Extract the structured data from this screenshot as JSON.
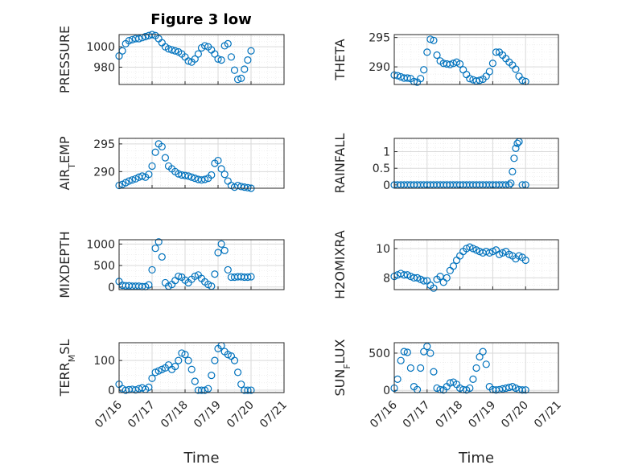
{
  "title": "Figure 3 low",
  "colors": {
    "series": "#0072bd",
    "axis": "#262626",
    "grid": "#d9d9d9"
  },
  "chart_data": [
    {
      "id": "pressure",
      "type": "scatter",
      "ylabel": "PRESSURE",
      "xlim": [
        0,
        5
      ],
      "ylim": [
        963,
        1012
      ],
      "yticks": [
        980,
        1000
      ],
      "xtick_labels": [],
      "x": [
        0.0,
        0.1,
        0.2,
        0.3,
        0.4,
        0.5,
        0.6,
        0.7,
        0.8,
        0.9,
        1.0,
        1.1,
        1.2,
        1.3,
        1.4,
        1.5,
        1.6,
        1.7,
        1.8,
        1.9,
        2.0,
        2.1,
        2.2,
        2.3,
        2.4,
        2.5,
        2.6,
        2.7,
        2.8,
        2.9,
        3.0,
        3.1,
        3.2,
        3.3,
        3.4,
        3.5,
        3.6,
        3.7,
        3.8,
        3.9,
        4.0
      ],
      "y": [
        991,
        996,
        1003,
        1006,
        1007,
        1008,
        1008,
        1009,
        1010,
        1011,
        1012,
        1011,
        1008,
        1004,
        1000,
        998,
        997,
        996,
        995,
        993,
        990,
        986,
        985,
        988,
        993,
        999,
        1001,
        1000,
        997,
        993,
        988,
        987,
        1001,
        1003,
        990,
        977,
        968,
        969,
        978,
        987,
        996
      ]
    },
    {
      "id": "theta",
      "type": "scatter",
      "ylabel": "THETA",
      "xlim": [
        0,
        5
      ],
      "ylim": [
        287,
        295.5
      ],
      "yticks": [
        290,
        295
      ],
      "xtick_labels": [],
      "x": [
        0.0,
        0.1,
        0.2,
        0.3,
        0.4,
        0.5,
        0.6,
        0.7,
        0.8,
        0.9,
        1.0,
        1.1,
        1.2,
        1.3,
        1.4,
        1.5,
        1.6,
        1.7,
        1.8,
        1.9,
        2.0,
        2.1,
        2.2,
        2.3,
        2.4,
        2.5,
        2.6,
        2.7,
        2.8,
        2.9,
        3.0,
        3.1,
        3.2,
        3.3,
        3.4,
        3.5,
        3.6,
        3.7,
        3.8,
        3.9,
        4.0
      ],
      "y": [
        288.6,
        288.5,
        288.3,
        288.1,
        288.1,
        288.0,
        287.5,
        287.4,
        288.0,
        289.5,
        292.5,
        294.7,
        294.5,
        292.0,
        291.0,
        290.6,
        290.5,
        290.4,
        290.6,
        290.8,
        290.5,
        289.5,
        288.7,
        288.0,
        287.8,
        287.6,
        287.7,
        287.9,
        288.4,
        289.2,
        290.6,
        292.5,
        292.5,
        292.0,
        291.4,
        290.8,
        290.3,
        289.6,
        288.4,
        287.7,
        287.5
      ]
    },
    {
      "id": "air_temp",
      "type": "scatter",
      "ylabel": "AIR_TEMP",
      "xlim": [
        0,
        5
      ],
      "ylim": [
        287,
        296
      ],
      "yticks": [
        290,
        295
      ],
      "xtick_labels": [],
      "x": [
        0.0,
        0.1,
        0.2,
        0.3,
        0.4,
        0.5,
        0.6,
        0.7,
        0.8,
        0.9,
        1.0,
        1.1,
        1.2,
        1.3,
        1.4,
        1.5,
        1.6,
        1.7,
        1.8,
        1.9,
        2.0,
        2.1,
        2.2,
        2.3,
        2.4,
        2.5,
        2.6,
        2.7,
        2.8,
        2.9,
        3.0,
        3.1,
        3.2,
        3.3,
        3.4,
        3.5,
        3.6,
        3.7,
        3.8,
        3.9,
        4.0
      ],
      "y": [
        287.5,
        287.7,
        288.0,
        288.3,
        288.5,
        288.7,
        289.0,
        289.2,
        289.0,
        289.5,
        291.0,
        293.5,
        295.0,
        294.5,
        292.5,
        291.0,
        290.5,
        290.0,
        289.6,
        289.4,
        289.3,
        289.2,
        289.0,
        288.8,
        288.6,
        288.5,
        288.6,
        288.8,
        289.4,
        291.5,
        292.0,
        290.5,
        289.5,
        288.3,
        287.5,
        287.2,
        287.5,
        287.3,
        287.2,
        287.1,
        287.0
      ]
    },
    {
      "id": "rainfall",
      "type": "scatter",
      "ylabel": "RAINFALL",
      "xlim": [
        0,
        5
      ],
      "ylim": [
        -0.1,
        1.4
      ],
      "yticks": [
        0,
        0.5,
        1
      ],
      "xtick_labels": [],
      "x": [
        0.0,
        0.1,
        0.2,
        0.3,
        0.4,
        0.5,
        0.6,
        0.7,
        0.8,
        0.9,
        1.0,
        1.1,
        1.2,
        1.3,
        1.4,
        1.5,
        1.6,
        1.7,
        1.8,
        1.9,
        2.0,
        2.1,
        2.2,
        2.3,
        2.4,
        2.5,
        2.6,
        2.7,
        2.8,
        2.9,
        3.0,
        3.1,
        3.2,
        3.3,
        3.4,
        3.5,
        3.55,
        3.6,
        3.65,
        3.7,
        3.75,
        3.8,
        3.9,
        4.0
      ],
      "y": [
        0,
        0,
        0,
        0,
        0,
        0,
        0,
        0,
        0,
        0,
        0,
        0,
        0,
        0,
        0,
        0,
        0,
        0,
        0,
        0,
        0,
        0,
        0,
        0,
        0,
        0,
        0,
        0,
        0,
        0,
        0,
        0,
        0,
        0,
        0,
        0,
        0.05,
        0.4,
        0.8,
        1.1,
        1.25,
        1.3,
        0,
        0
      ]
    },
    {
      "id": "mixdepth",
      "type": "scatter",
      "ylabel": "MIXDEPTH",
      "xlim": [
        0,
        5
      ],
      "ylim": [
        -60,
        1100
      ],
      "yticks": [
        0,
        500,
        1000
      ],
      "xtick_labels": [],
      "x": [
        0.0,
        0.1,
        0.2,
        0.3,
        0.4,
        0.5,
        0.6,
        0.7,
        0.8,
        0.9,
        1.0,
        1.1,
        1.2,
        1.3,
        1.4,
        1.5,
        1.6,
        1.7,
        1.8,
        1.9,
        2.0,
        2.1,
        2.2,
        2.3,
        2.4,
        2.5,
        2.6,
        2.7,
        2.8,
        2.9,
        3.0,
        3.1,
        3.2,
        3.3,
        3.4,
        3.5,
        3.6,
        3.7,
        3.8,
        3.9,
        4.0
      ],
      "y": [
        130,
        40,
        30,
        30,
        20,
        20,
        20,
        10,
        10,
        50,
        400,
        900,
        1050,
        700,
        100,
        20,
        60,
        150,
        250,
        230,
        160,
        100,
        180,
        250,
        280,
        200,
        120,
        60,
        20,
        300,
        800,
        1000,
        850,
        400,
        230,
        230,
        240,
        240,
        230,
        230,
        240
      ]
    },
    {
      "id": "h2omixra",
      "type": "scatter",
      "ylabel": "H2OMIXRA",
      "xlim": [
        0,
        5
      ],
      "ylim": [
        7.2,
        10.6
      ],
      "yticks": [
        8,
        10
      ],
      "xtick_labels": [],
      "x": [
        0.0,
        0.1,
        0.2,
        0.3,
        0.4,
        0.5,
        0.6,
        0.7,
        0.8,
        0.9,
        1.0,
        1.1,
        1.2,
        1.3,
        1.4,
        1.5,
        1.6,
        1.7,
        1.8,
        1.9,
        2.0,
        2.1,
        2.2,
        2.3,
        2.4,
        2.5,
        2.6,
        2.7,
        2.8,
        2.9,
        3.0,
        3.1,
        3.2,
        3.3,
        3.4,
        3.5,
        3.6,
        3.7,
        3.8,
        3.9,
        4.0
      ],
      "y": [
        8.1,
        8.2,
        8.3,
        8.2,
        8.2,
        8.1,
        8.0,
        8.0,
        7.9,
        7.8,
        7.8,
        7.5,
        7.3,
        7.9,
        8.1,
        7.7,
        8.0,
        8.5,
        8.8,
        9.2,
        9.5,
        9.8,
        10.0,
        10.1,
        10.0,
        9.9,
        9.8,
        9.7,
        9.8,
        9.7,
        9.8,
        9.9,
        9.6,
        9.7,
        9.8,
        9.6,
        9.5,
        9.3,
        9.5,
        9.4,
        9.2
      ]
    },
    {
      "id": "terr_msl",
      "type": "scatter",
      "ylabel": "TERR_MSL",
      "xlim": [
        0,
        5
      ],
      "ylim": [
        -8,
        160
      ],
      "yticks": [
        0,
        100
      ],
      "xtick_labels": [
        "07/16",
        "07/17",
        "07/18",
        "07/19",
        "07/20",
        "07/21"
      ],
      "xlabel": "Time",
      "x": [
        0.0,
        0.1,
        0.2,
        0.3,
        0.4,
        0.5,
        0.6,
        0.7,
        0.8,
        0.9,
        1.0,
        1.1,
        1.2,
        1.3,
        1.4,
        1.5,
        1.6,
        1.7,
        1.8,
        1.9,
        2.0,
        2.1,
        2.2,
        2.3,
        2.4,
        2.5,
        2.6,
        2.7,
        2.8,
        2.9,
        3.0,
        3.1,
        3.2,
        3.3,
        3.4,
        3.5,
        3.6,
        3.7,
        3.8,
        3.9,
        4.0
      ],
      "y": [
        20,
        5,
        0,
        2,
        3,
        1,
        5,
        8,
        3,
        10,
        40,
        60,
        65,
        70,
        75,
        85,
        70,
        80,
        100,
        125,
        120,
        100,
        70,
        30,
        0,
        0,
        0,
        5,
        50,
        100,
        140,
        150,
        130,
        120,
        115,
        100,
        60,
        20,
        0,
        0,
        0
      ]
    },
    {
      "id": "sun_flux",
      "type": "scatter",
      "ylabel": "SUN_FLUX",
      "xlim": [
        0,
        5
      ],
      "ylim": [
        -30,
        640
      ],
      "yticks": [
        0,
        500
      ],
      "xtick_labels": [
        "07/16",
        "07/17",
        "07/18",
        "07/19",
        "07/20",
        "07/21"
      ],
      "xlabel": "Time",
      "x": [
        0.0,
        0.1,
        0.2,
        0.3,
        0.4,
        0.5,
        0.6,
        0.7,
        0.8,
        0.9,
        1.0,
        1.1,
        1.2,
        1.3,
        1.4,
        1.5,
        1.6,
        1.7,
        1.8,
        1.9,
        2.0,
        2.1,
        2.2,
        2.3,
        2.4,
        2.5,
        2.6,
        2.7,
        2.8,
        2.9,
        3.0,
        3.1,
        3.2,
        3.3,
        3.4,
        3.5,
        3.6,
        3.7,
        3.8,
        3.9,
        4.0
      ],
      "y": [
        30,
        150,
        400,
        520,
        510,
        300,
        50,
        10,
        300,
        520,
        590,
        500,
        250,
        30,
        10,
        5,
        50,
        100,
        110,
        80,
        30,
        10,
        5,
        30,
        150,
        300,
        450,
        520,
        350,
        50,
        10,
        5,
        10,
        20,
        30,
        40,
        50,
        30,
        10,
        5,
        5
      ]
    }
  ]
}
